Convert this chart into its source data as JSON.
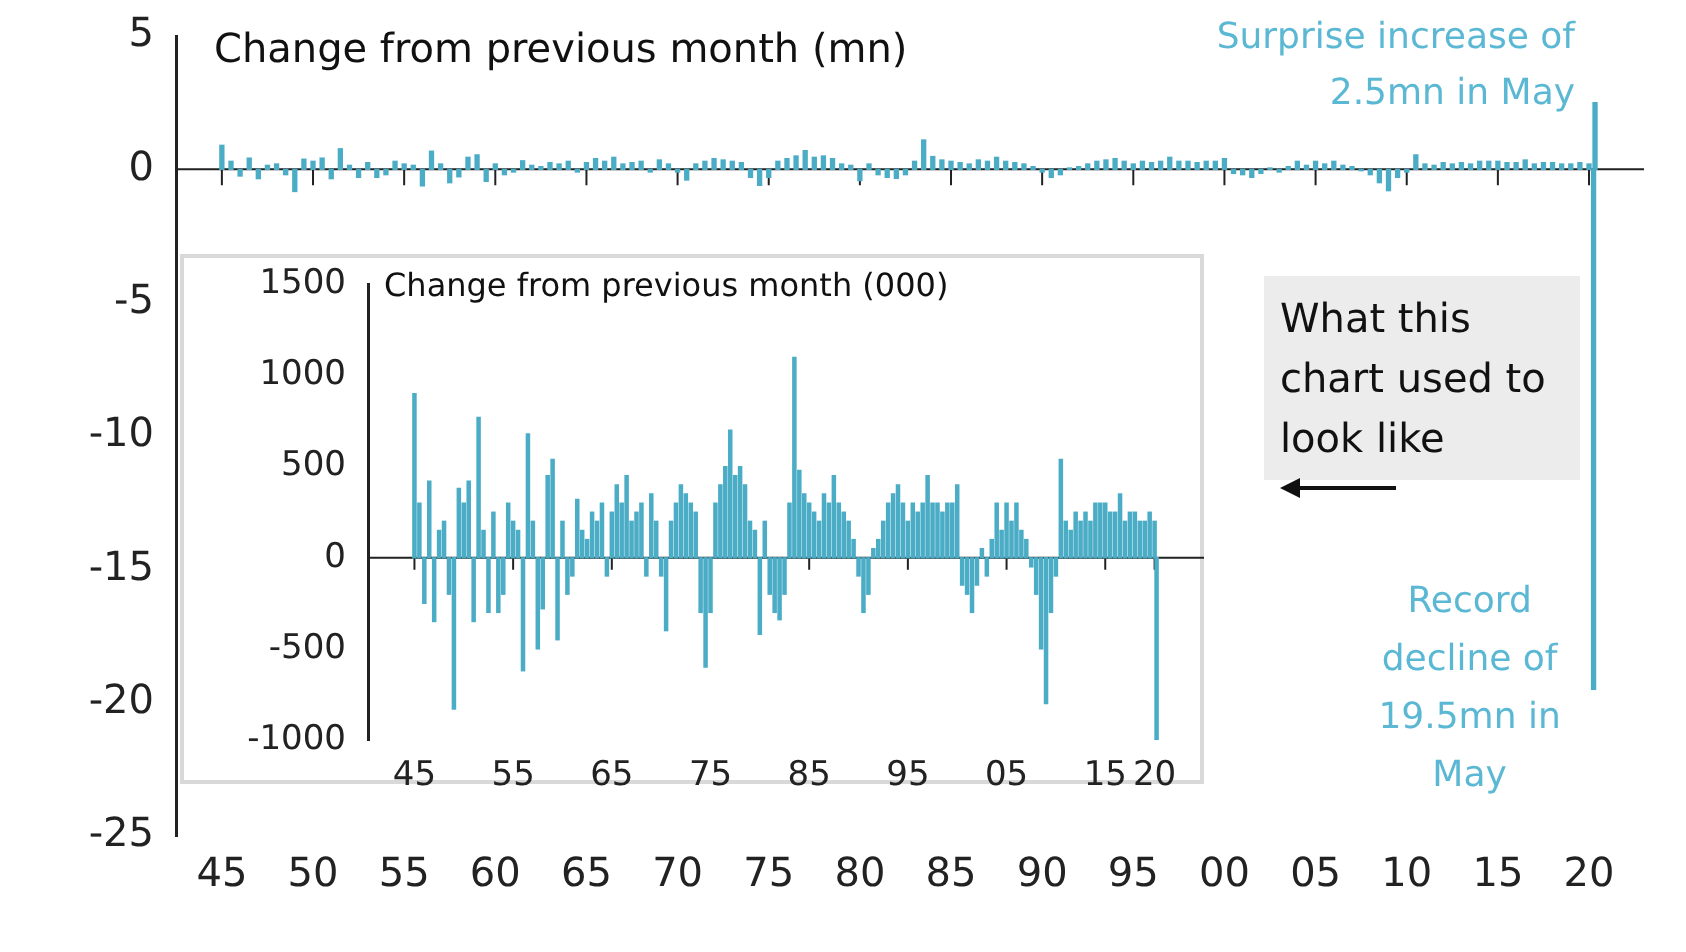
{
  "chart_data": [
    {
      "type": "bar",
      "title": "Change from previous month (mn)",
      "color": "#4bacc6",
      "x": [
        1945.0,
        1945.5,
        1946.0,
        1946.5,
        1947.0,
        1947.5,
        1948.0,
        1948.5,
        1949.0,
        1949.5,
        1950.0,
        1950.5,
        1951.0,
        1951.5,
        1952.0,
        1952.5,
        1953.0,
        1953.5,
        1954.0,
        1954.5,
        1955.0,
        1955.5,
        1956.0,
        1956.5,
        1957.0,
        1957.5,
        1958.0,
        1958.5,
        1959.0,
        1959.5,
        1960.0,
        1960.5,
        1961.0,
        1961.5,
        1962.0,
        1962.5,
        1963.0,
        1963.5,
        1964.0,
        1964.5,
        1965.0,
        1965.5,
        1966.0,
        1966.5,
        1967.0,
        1967.5,
        1968.0,
        1968.5,
        1969.0,
        1969.5,
        1970.0,
        1970.5,
        1971.0,
        1971.5,
        1972.0,
        1972.5,
        1973.0,
        1973.5,
        1974.0,
        1974.5,
        1975.0,
        1975.5,
        1976.0,
        1976.5,
        1977.0,
        1977.5,
        1978.0,
        1978.5,
        1979.0,
        1979.5,
        1980.0,
        1980.5,
        1981.0,
        1981.5,
        1982.0,
        1982.5,
        1983.0,
        1983.5,
        1984.0,
        1984.5,
        1985.0,
        1985.5,
        1986.0,
        1986.5,
        1987.0,
        1987.5,
        1988.0,
        1988.5,
        1989.0,
        1989.5,
        1990.0,
        1990.5,
        1991.0,
        1991.5,
        1992.0,
        1992.5,
        1993.0,
        1993.5,
        1994.0,
        1994.5,
        1995.0,
        1995.5,
        1996.0,
        1996.5,
        1997.0,
        1997.5,
        1998.0,
        1998.5,
        1999.0,
        1999.5,
        2000.0,
        2000.5,
        2001.0,
        2001.5,
        2002.0,
        2002.5,
        2003.0,
        2003.5,
        2004.0,
        2004.5,
        2005.0,
        2005.5,
        2006.0,
        2006.5,
        2007.0,
        2007.5,
        2008.0,
        2008.5,
        2009.0,
        2009.5,
        2010.0,
        2010.5,
        2011.0,
        2011.5,
        2012.0,
        2012.5,
        2013.0,
        2013.5,
        2014.0,
        2014.5,
        2015.0,
        2015.5,
        2016.0,
        2016.5,
        2017.0,
        2017.5,
        2018.0,
        2018.5,
        2019.0,
        2019.5,
        2020.0,
        2020.25,
        2020.33
      ],
      "values": [
        0.9,
        0.3,
        -0.25,
        0.42,
        -0.35,
        0.15,
        0.2,
        -0.2,
        -0.83,
        0.38,
        0.3,
        0.42,
        -0.35,
        0.77,
        0.15,
        -0.3,
        0.25,
        -0.3,
        -0.2,
        0.3,
        0.2,
        0.15,
        -0.62,
        0.68,
        0.2,
        -0.5,
        -0.28,
        0.45,
        0.54,
        -0.45,
        0.2,
        -0.2,
        -0.1,
        0.32,
        0.15,
        0.1,
        0.25,
        0.2,
        0.3,
        -0.1,
        0.25,
        0.4,
        0.3,
        0.45,
        0.2,
        0.25,
        0.3,
        -0.1,
        0.35,
        0.2,
        -0.1,
        -0.4,
        0.2,
        0.3,
        0.4,
        0.35,
        0.3,
        0.25,
        -0.3,
        -0.6,
        -0.3,
        0.3,
        0.4,
        0.5,
        0.7,
        0.45,
        0.5,
        0.4,
        0.2,
        0.15,
        -0.42,
        0.2,
        -0.2,
        -0.3,
        -0.34,
        -0.2,
        0.3,
        1.1,
        0.48,
        0.35,
        0.3,
        0.25,
        0.2,
        0.35,
        0.3,
        0.45,
        0.3,
        0.25,
        0.2,
        0.1,
        -0.1,
        -0.3,
        -0.2,
        0.05,
        0.1,
        0.2,
        0.3,
        0.35,
        0.4,
        0.3,
        0.2,
        0.3,
        0.25,
        0.3,
        0.45,
        0.3,
        0.3,
        0.25,
        0.3,
        0.3,
        0.4,
        -0.15,
        -0.2,
        -0.3,
        -0.15,
        0.05,
        -0.1,
        0.1,
        0.3,
        0.15,
        0.3,
        0.2,
        0.3,
        0.15,
        0.1,
        -0.05,
        -0.2,
        -0.5,
        -0.8,
        -0.3,
        -0.1,
        0.54,
        0.2,
        0.15,
        0.25,
        0.2,
        0.25,
        0.2,
        0.3,
        0.3,
        0.3,
        0.25,
        0.25,
        0.35,
        0.2,
        0.25,
        0.25,
        0.2,
        0.2,
        0.25,
        0.2,
        -19.5,
        2.5
      ],
      "xlim": [
        1945,
        2020.5
      ],
      "ylim": [
        -25,
        5
      ],
      "xticks": [
        {
          "value": 1945,
          "label": "45"
        },
        {
          "value": 1950,
          "label": "50"
        },
        {
          "value": 1955,
          "label": "55"
        },
        {
          "value": 1960,
          "label": "60"
        },
        {
          "value": 1965,
          "label": "65"
        },
        {
          "value": 1970,
          "label": "70"
        },
        {
          "value": 1975,
          "label": "75"
        },
        {
          "value": 1980,
          "label": "80"
        },
        {
          "value": 1985,
          "label": "85"
        },
        {
          "value": 1990,
          "label": "90"
        },
        {
          "value": 1995,
          "label": "95"
        },
        {
          "value": 2000,
          "label": "00"
        },
        {
          "value": 2005,
          "label": "05"
        },
        {
          "value": 2010,
          "label": "10"
        },
        {
          "value": 2015,
          "label": "15"
        },
        {
          "value": 2020,
          "label": "20"
        }
      ],
      "yticks": [
        -25,
        -20,
        -15,
        -10,
        -5,
        0,
        5
      ],
      "annotations": [
        {
          "text": "Surprise increase of 2.5mn in May",
          "x": 2020.33,
          "y": 2.5
        },
        {
          "text": "Record decline of 19.5mn in May",
          "x": 2020.25,
          "y": -19.5
        },
        "What this chart used to look like"
      ]
    },
    {
      "type": "bar",
      "title": "Change from previous month (000)",
      "color": "#4bacc6",
      "x": [
        1945.0,
        1945.5,
        1946.0,
        1946.5,
        1947.0,
        1947.5,
        1948.0,
        1948.5,
        1949.0,
        1949.5,
        1950.0,
        1950.5,
        1951.0,
        1951.5,
        1952.0,
        1952.5,
        1953.0,
        1953.5,
        1954.0,
        1954.5,
        1955.0,
        1955.5,
        1956.0,
        1956.5,
        1957.0,
        1957.5,
        1958.0,
        1958.5,
        1959.0,
        1959.5,
        1960.0,
        1960.5,
        1961.0,
        1961.5,
        1962.0,
        1962.5,
        1963.0,
        1963.5,
        1964.0,
        1964.5,
        1965.0,
        1965.5,
        1966.0,
        1966.5,
        1967.0,
        1967.5,
        1968.0,
        1968.5,
        1969.0,
        1969.5,
        1970.0,
        1970.5,
        1971.0,
        1971.5,
        1972.0,
        1972.5,
        1973.0,
        1973.5,
        1974.0,
        1974.5,
        1975.0,
        1975.5,
        1976.0,
        1976.5,
        1977.0,
        1977.5,
        1978.0,
        1978.5,
        1979.0,
        1979.5,
        1980.0,
        1980.5,
        1981.0,
        1981.5,
        1982.0,
        1982.5,
        1983.0,
        1983.5,
        1984.0,
        1984.5,
        1985.0,
        1985.5,
        1986.0,
        1986.5,
        1987.0,
        1987.5,
        1988.0,
        1988.5,
        1989.0,
        1989.5,
        1990.0,
        1990.5,
        1991.0,
        1991.5,
        1992.0,
        1992.5,
        1993.0,
        1993.5,
        1994.0,
        1994.5,
        1995.0,
        1995.5,
        1996.0,
        1996.5,
        1997.0,
        1997.5,
        1998.0,
        1998.5,
        1999.0,
        1999.5,
        2000.0,
        2000.5,
        2001.0,
        2001.5,
        2002.0,
        2002.5,
        2003.0,
        2003.5,
        2004.0,
        2004.5,
        2005.0,
        2005.5,
        2006.0,
        2006.5,
        2007.0,
        2007.5,
        2008.0,
        2008.5,
        2009.0,
        2009.5,
        2010.0,
        2010.5,
        2011.0,
        2011.5,
        2012.0,
        2012.5,
        2013.0,
        2013.5,
        2014.0,
        2014.5,
        2015.0,
        2015.5,
        2016.0,
        2016.5,
        2017.0,
        2017.5,
        2018.0,
        2018.5,
        2019.0,
        2019.5,
        2020.0,
        2020.2
      ],
      "values": [
        900,
        300,
        -250,
        420,
        -350,
        150,
        200,
        -200,
        -830,
        380,
        300,
        420,
        -350,
        770,
        150,
        -300,
        250,
        -300,
        -200,
        300,
        200,
        150,
        -620,
        680,
        200,
        -500,
        -280,
        450,
        540,
        -450,
        200,
        -200,
        -100,
        320,
        150,
        100,
        250,
        200,
        300,
        -100,
        250,
        400,
        300,
        450,
        200,
        250,
        300,
        -100,
        350,
        200,
        -100,
        -400,
        200,
        300,
        400,
        350,
        300,
        250,
        -300,
        -600,
        -300,
        300,
        400,
        500,
        700,
        450,
        500,
        400,
        200,
        150,
        -420,
        200,
        -200,
        -300,
        -340,
        -200,
        300,
        1100,
        480,
        350,
        300,
        250,
        200,
        350,
        300,
        450,
        300,
        250,
        200,
        100,
        -100,
        -300,
        -200,
        50,
        100,
        200,
        300,
        350,
        400,
        300,
        200,
        300,
        250,
        300,
        450,
        300,
        300,
        250,
        300,
        300,
        400,
        -150,
        -200,
        -300,
        -150,
        50,
        -100,
        100,
        300,
        150,
        300,
        200,
        300,
        150,
        100,
        -50,
        -200,
        -500,
        -800,
        -300,
        -100,
        540,
        200,
        150,
        250,
        200,
        250,
        200,
        300,
        300,
        300,
        250,
        250,
        350,
        200,
        250,
        250,
        200,
        200,
        250,
        200,
        -1000
      ],
      "xlim": [
        1945,
        2020.3
      ],
      "ylim": [
        -1000,
        1500
      ],
      "xticks": [
        {
          "value": 1945,
          "label": "45"
        },
        {
          "value": 1955,
          "label": "55"
        },
        {
          "value": 1965,
          "label": "65"
        },
        {
          "value": 1975,
          "label": "75"
        },
        {
          "value": 1985,
          "label": "85"
        },
        {
          "value": 1995,
          "label": "95"
        },
        {
          "value": 2005,
          "label": "05"
        },
        {
          "value": 2015,
          "label": "15"
        },
        {
          "value": 2020,
          "label": "20"
        }
      ],
      "yticks": [
        -1000,
        -500,
        0,
        500,
        1000,
        1500
      ]
    }
  ]
}
